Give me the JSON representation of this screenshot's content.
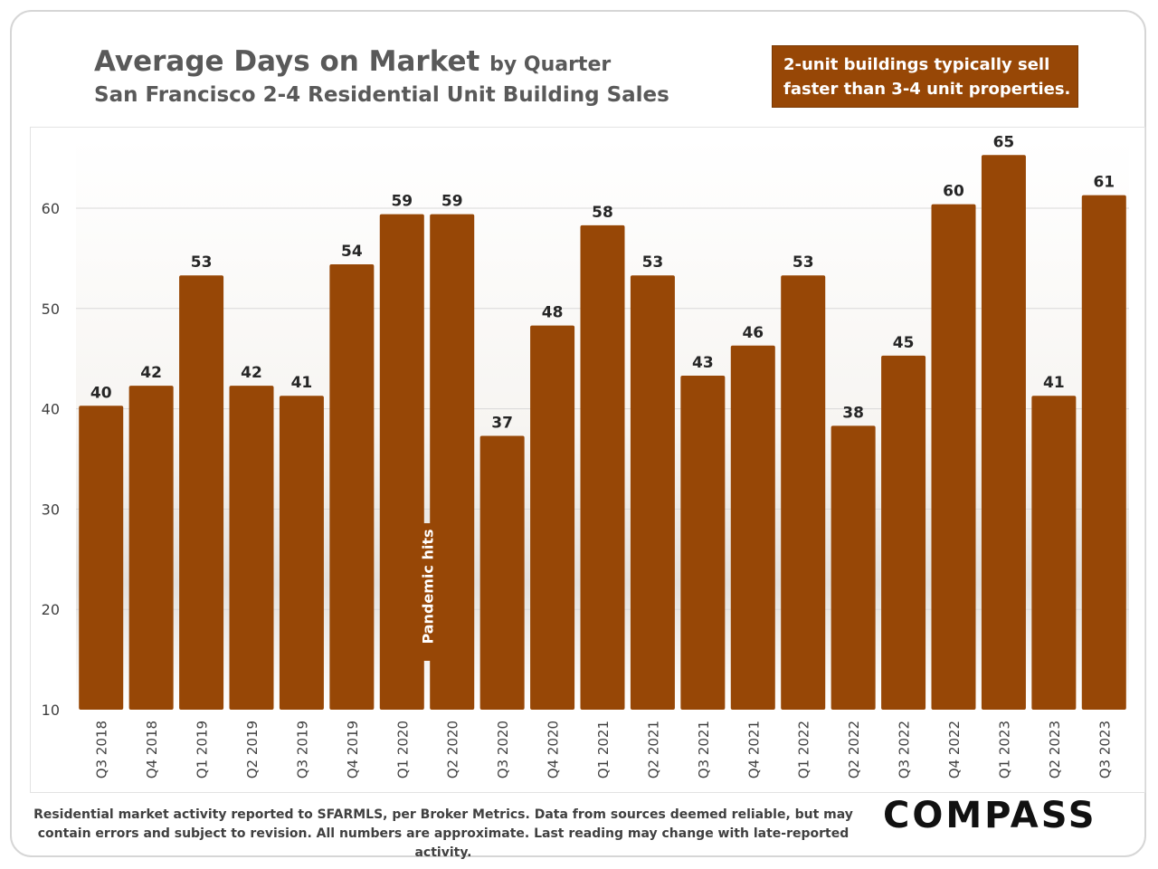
{
  "header": {
    "title": "Average Days on Market",
    "title_suffix": "by Quarter",
    "subtitle": "San Francisco 2-4 Residential Unit Building Sales"
  },
  "callout": {
    "line1": "2-unit buildings typically sell",
    "line2": "faster than 3-4 unit properties."
  },
  "footnote": {
    "line1": "Residential market activity reported to SFARMLS, per Broker Metrics. Data from sources deemed reliable, but may",
    "line2": "contain errors and subject to revision. All numbers are approximate. Last reading may change with late-reported activity."
  },
  "logo": "COMPASS",
  "colors": {
    "bar": "#974706",
    "callout_bg": "#974706",
    "title": "#595959"
  },
  "chart_data": {
    "type": "bar",
    "title": "Average Days on Market by Quarter",
    "subtitle": "San Francisco 2-4 Residential Unit Building Sales",
    "xlabel": "",
    "ylabel": "",
    "categories": [
      "Q3 2018",
      "Q4 2018",
      "Q1 2019",
      "Q2 2019",
      "Q3 2019",
      "Q4 2019",
      "Q1 2020",
      "Q2 2020",
      "Q3 2020",
      "Q4 2020",
      "Q1 2021",
      "Q2 2021",
      "Q3 2021",
      "Q4 2021",
      "Q1 2022",
      "Q2 2022",
      "Q3 2022",
      "Q4 2022",
      "Q1 2023",
      "Q2 2023",
      "Q3 2023"
    ],
    "values": [
      40,
      42,
      53,
      42,
      41,
      54,
      59,
      59,
      37,
      48,
      58,
      53,
      43,
      46,
      53,
      38,
      45,
      60,
      65,
      41,
      61
    ],
    "actual_values": [
      40.3,
      42.3,
      53.3,
      42.3,
      41.3,
      54.4,
      59.4,
      59.4,
      37.3,
      48.3,
      58.3,
      53.3,
      43.3,
      46.3,
      53.3,
      38.3,
      45.3,
      60.4,
      65.3,
      41.3,
      61.3
    ],
    "ylim": [
      10,
      67
    ],
    "yticks": [
      10,
      20,
      30,
      40,
      50,
      60
    ],
    "grid": true,
    "annotations": [
      {
        "text": "Pandemic hits",
        "category": "Q1 2020"
      }
    ]
  }
}
